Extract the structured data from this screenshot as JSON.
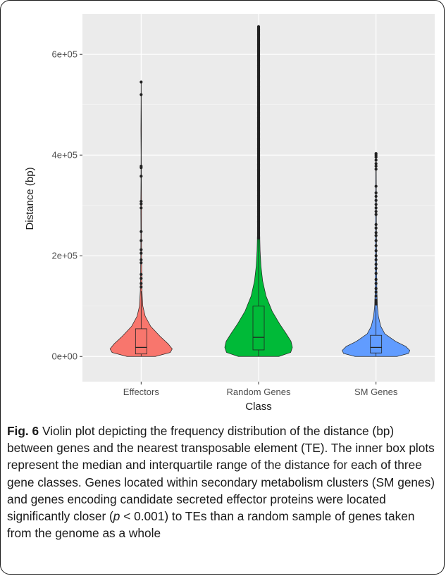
{
  "caption": {
    "label": "Fig. 6",
    "text_before_p": " Violin plot depicting the frequency distribution of the distance (bp) between genes and the nearest transposable element (TE). The inner box plots represent the median and interquartile range of the distance for each of three gene classes. Genes located within secondary metabolism clusters (SM genes) and genes encoding candidate secreted effector proteins were located significantly closer (",
    "p_symbol": "p",
    "text_after_p": " < 0.001) to TEs than a random sample of genes taken from the genome as a whole"
  },
  "chart_data": {
    "type": "violin",
    "xlabel": "Class",
    "ylabel": "Distance (bp)",
    "ylim": [
      -50000,
      680000
    ],
    "yticks": [
      0,
      200000,
      400000,
      600000
    ],
    "ytick_labels": [
      "0e+00",
      "2e+05",
      "4e+05",
      "6e+05"
    ],
    "grid": true,
    "background": "#ebebeb",
    "categories": [
      "Effectors",
      "Random Genes",
      "SM Genes"
    ],
    "series": [
      {
        "category": "Effectors",
        "color": "#f8766d",
        "box": {
          "q1": 5000,
          "median": 18000,
          "q3": 55000,
          "whisker_low": 0,
          "whisker_high": 130000
        },
        "density": [
          [
            0,
            0.42
          ],
          [
            8000,
            0.86
          ],
          [
            15000,
            0.92
          ],
          [
            25000,
            0.8
          ],
          [
            40000,
            0.56
          ],
          [
            60000,
            0.28
          ],
          [
            80000,
            0.12
          ],
          [
            100000,
            0.05
          ],
          [
            130000,
            0.025
          ],
          [
            160000,
            0.018
          ],
          [
            200000,
            0.012
          ],
          [
            250000,
            0.008
          ],
          [
            300000,
            0.011
          ],
          [
            350000,
            0.006
          ],
          [
            400000,
            0.004
          ],
          [
            450000,
            0.008
          ],
          [
            500000,
            0.004
          ],
          [
            545000,
            0.002
          ]
        ],
        "outliers": [
          545000,
          520000,
          378000,
          375000,
          358000,
          308000,
          303000,
          295000,
          248000,
          230000,
          212000,
          205000,
          192000,
          186000,
          163000,
          155000,
          145000,
          138000
        ]
      },
      {
        "category": "Random Genes",
        "color": "#00ba38",
        "box": {
          "q1": 13000,
          "median": 38000,
          "q3": 100000,
          "whisker_low": 0,
          "whisker_high": 235000
        },
        "density": [
          [
            0,
            0.6
          ],
          [
            8000,
            0.95
          ],
          [
            18000,
            1.0
          ],
          [
            30000,
            0.96
          ],
          [
            45000,
            0.82
          ],
          [
            65000,
            0.62
          ],
          [
            90000,
            0.4
          ],
          [
            120000,
            0.22
          ],
          [
            150000,
            0.12
          ],
          [
            180000,
            0.07
          ],
          [
            210000,
            0.045
          ],
          [
            240000,
            0.035
          ],
          [
            300000,
            0.025
          ],
          [
            400000,
            0.018
          ],
          [
            500000,
            0.012
          ],
          [
            600000,
            0.008
          ],
          [
            655000,
            0.004
          ]
        ],
        "outlier_range": [
          235000,
          655000
        ]
      },
      {
        "category": "SM Genes",
        "color": "#619cff",
        "box": {
          "q1": 7000,
          "median": 18000,
          "q3": 42000,
          "whisker_low": 0,
          "whisker_high": 100000
        },
        "density": [
          [
            0,
            0.62
          ],
          [
            6000,
            0.96
          ],
          [
            12000,
            1.0
          ],
          [
            20000,
            0.88
          ],
          [
            30000,
            0.58
          ],
          [
            45000,
            0.26
          ],
          [
            60000,
            0.14
          ],
          [
            80000,
            0.07
          ],
          [
            100000,
            0.04
          ],
          [
            130000,
            0.025
          ],
          [
            170000,
            0.02
          ],
          [
            220000,
            0.015
          ],
          [
            270000,
            0.012
          ],
          [
            320000,
            0.01
          ],
          [
            360000,
            0.008
          ],
          [
            403000,
            0.005
          ]
        ],
        "outliers": [
          403000,
          400000,
          396000,
          390000,
          383000,
          378000,
          372000,
          338000,
          325000,
          318000,
          310000,
          302000,
          295000,
          288000,
          282000,
          262000,
          255000,
          246000,
          240000,
          230000,
          220000,
          210000,
          200000,
          192000,
          183000,
          175000,
          165000,
          153000,
          145000,
          135000,
          128000,
          120000,
          112000,
          108000,
          104000
        ]
      }
    ]
  }
}
